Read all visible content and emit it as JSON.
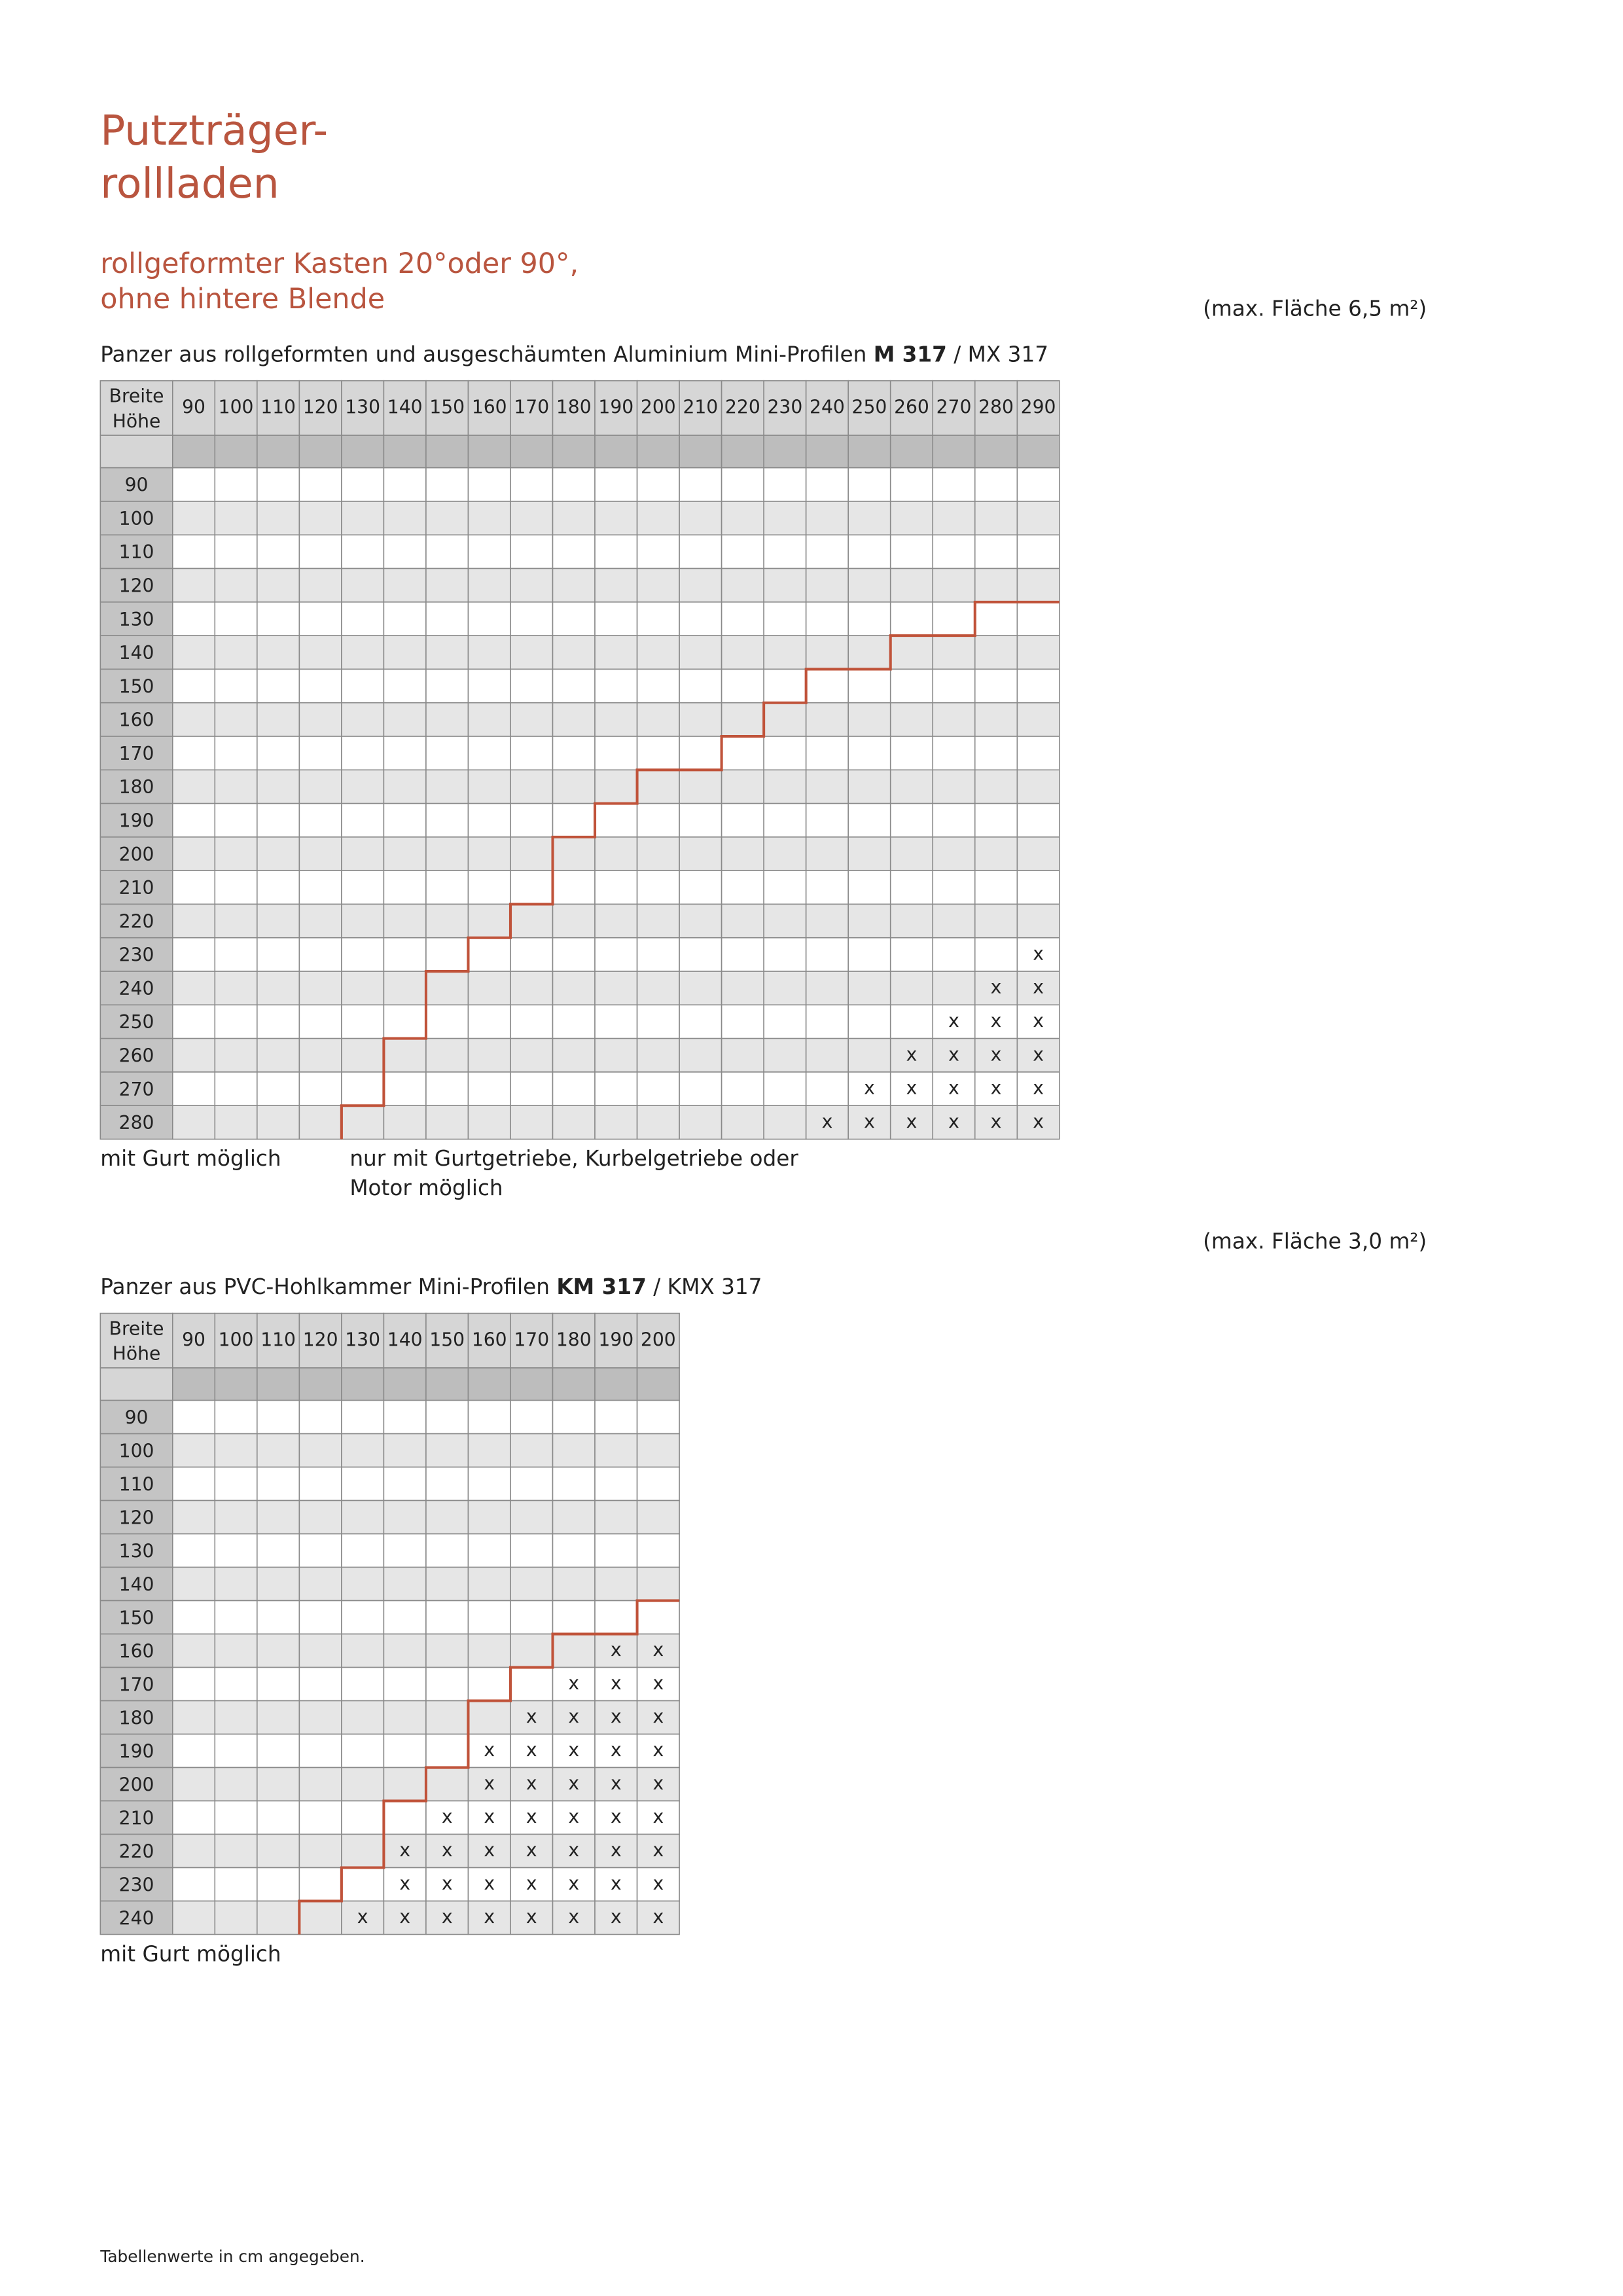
{
  "header": {
    "title_line1": "Putzträger-",
    "title_line2": "rollladen",
    "subtitle_line1": "rollgeformter Kasten 20°oder 90°,",
    "subtitle_line2": "ohne hintere Blende"
  },
  "sections": [
    {
      "area_note": "(max. Fläche 6,5 m²)",
      "caption_prefix": "Panzer aus rollgeformten und ausgeschäumten Aluminium Mini-Profilen ",
      "caption_bold": "M 317",
      "caption_suffix": " / MX 317",
      "table": {
        "corner_top": "Breite",
        "corner_bottom": "Höhe",
        "columns": [
          "90",
          "100",
          "110",
          "120",
          "130",
          "140",
          "150",
          "160",
          "170",
          "180",
          "190",
          "200",
          "210",
          "220",
          "230",
          "240",
          "250",
          "260",
          "270",
          "280",
          "290"
        ],
        "rows": [
          {
            "label": "90",
            "cells": [
              null,
              null,
              null,
              null,
              null,
              null,
              null,
              null,
              null,
              null,
              null,
              null,
              null,
              null,
              null,
              null,
              null,
              null,
              null,
              null,
              null
            ]
          },
          {
            "label": "100",
            "cells": [
              null,
              null,
              null,
              null,
              null,
              null,
              null,
              null,
              null,
              null,
              null,
              null,
              null,
              null,
              null,
              null,
              null,
              null,
              null,
              null,
              null
            ]
          },
          {
            "label": "110",
            "cells": [
              null,
              null,
              null,
              null,
              null,
              null,
              null,
              null,
              null,
              null,
              null,
              null,
              null,
              null,
              null,
              null,
              null,
              null,
              null,
              null,
              null
            ]
          },
          {
            "label": "120",
            "cells": [
              null,
              null,
              null,
              null,
              null,
              null,
              null,
              null,
              null,
              null,
              null,
              null,
              null,
              null,
              null,
              null,
              null,
              null,
              null,
              null,
              null
            ]
          },
          {
            "label": "130",
            "cells": [
              null,
              null,
              null,
              null,
              null,
              null,
              null,
              null,
              null,
              null,
              null,
              null,
              null,
              null,
              null,
              null,
              null,
              null,
              null,
              null,
              null
            ]
          },
          {
            "label": "140",
            "cells": [
              null,
              null,
              null,
              null,
              null,
              null,
              null,
              null,
              null,
              null,
              null,
              null,
              null,
              null,
              null,
              null,
              null,
              null,
              null,
              null,
              null
            ]
          },
          {
            "label": "150",
            "cells": [
              null,
              null,
              null,
              null,
              null,
              null,
              null,
              null,
              null,
              null,
              null,
              null,
              null,
              null,
              null,
              null,
              null,
              null,
              null,
              null,
              null
            ]
          },
          {
            "label": "160",
            "cells": [
              null,
              null,
              null,
              null,
              null,
              null,
              null,
              null,
              null,
              null,
              null,
              null,
              null,
              null,
              null,
              null,
              null,
              null,
              null,
              null,
              null
            ]
          },
          {
            "label": "170",
            "cells": [
              null,
              null,
              null,
              null,
              null,
              null,
              null,
              null,
              null,
              null,
              null,
              null,
              null,
              null,
              null,
              null,
              null,
              null,
              null,
              null,
              null
            ]
          },
          {
            "label": "180",
            "cells": [
              null,
              null,
              null,
              null,
              null,
              null,
              null,
              null,
              null,
              null,
              null,
              null,
              null,
              null,
              null,
              null,
              null,
              null,
              null,
              null,
              null
            ]
          },
          {
            "label": "190",
            "cells": [
              null,
              null,
              null,
              null,
              null,
              null,
              null,
              null,
              null,
              null,
              null,
              null,
              null,
              null,
              null,
              null,
              null,
              null,
              null,
              null,
              null
            ]
          },
          {
            "label": "200",
            "cells": [
              null,
              null,
              null,
              null,
              null,
              null,
              null,
              null,
              null,
              null,
              null,
              null,
              null,
              null,
              null,
              null,
              null,
              null,
              null,
              null,
              null
            ]
          },
          {
            "label": "210",
            "cells": [
              null,
              null,
              null,
              null,
              null,
              null,
              null,
              null,
              null,
              null,
              null,
              null,
              null,
              null,
              null,
              null,
              null,
              null,
              null,
              null,
              null
            ]
          },
          {
            "label": "220",
            "cells": [
              null,
              null,
              null,
              null,
              null,
              null,
              null,
              null,
              null,
              null,
              null,
              null,
              null,
              null,
              null,
              null,
              null,
              null,
              null,
              null,
              null
            ]
          },
          {
            "label": "230",
            "cells": [
              null,
              null,
              null,
              null,
              null,
              null,
              null,
              null,
              null,
              null,
              null,
              null,
              null,
              null,
              null,
              null,
              null,
              null,
              null,
              null,
              "x"
            ]
          },
          {
            "label": "240",
            "cells": [
              null,
              null,
              null,
              null,
              null,
              null,
              null,
              null,
              null,
              null,
              null,
              null,
              null,
              null,
              null,
              null,
              null,
              null,
              null,
              "x",
              "x"
            ]
          },
          {
            "label": "250",
            "cells": [
              null,
              null,
              null,
              null,
              null,
              null,
              null,
              null,
              null,
              null,
              null,
              null,
              null,
              null,
              null,
              null,
              null,
              null,
              "x",
              "x",
              "x"
            ]
          },
          {
            "label": "260",
            "cells": [
              null,
              null,
              null,
              null,
              null,
              null,
              null,
              null,
              null,
              null,
              null,
              null,
              null,
              null,
              null,
              null,
              null,
              "x",
              "x",
              "x",
              "x"
            ]
          },
          {
            "label": "270",
            "cells": [
              null,
              null,
              null,
              null,
              null,
              null,
              null,
              null,
              null,
              null,
              null,
              null,
              null,
              null,
              null,
              null,
              "x",
              "x",
              "x",
              "x",
              "x"
            ]
          },
          {
            "label": "280",
            "cells": [
              null,
              null,
              null,
              null,
              null,
              null,
              null,
              null,
              null,
              null,
              null,
              null,
              null,
              null,
              null,
              "x",
              "x",
              "x",
              "x",
              "x",
              "x"
            ]
          }
        ]
      },
      "notes": [
        "mit Gurt möglich",
        "nur mit Gurtgetriebe, Kurbelgetriebe oder Motor möglich"
      ]
    },
    {
      "area_note": "(max. Fläche 3,0 m²)",
      "caption_prefix": "Panzer aus PVC-Hohlkammer Mini-Profilen ",
      "caption_bold": "KM 317",
      "caption_suffix": " / KMX 317",
      "table": {
        "corner_top": "Breite",
        "corner_bottom": "Höhe",
        "columns": [
          "90",
          "100",
          "110",
          "120",
          "130",
          "140",
          "150",
          "160",
          "170",
          "180",
          "190",
          "200"
        ],
        "rows": [
          {
            "label": "90",
            "cells": [
              null,
              null,
              null,
              null,
              null,
              null,
              null,
              null,
              null,
              null,
              null,
              null
            ]
          },
          {
            "label": "100",
            "cells": [
              null,
              null,
              null,
              null,
              null,
              null,
              null,
              null,
              null,
              null,
              null,
              null
            ]
          },
          {
            "label": "110",
            "cells": [
              null,
              null,
              null,
              null,
              null,
              null,
              null,
              null,
              null,
              null,
              null,
              null
            ]
          },
          {
            "label": "120",
            "cells": [
              null,
              null,
              null,
              null,
              null,
              null,
              null,
              null,
              null,
              null,
              null,
              null
            ]
          },
          {
            "label": "130",
            "cells": [
              null,
              null,
              null,
              null,
              null,
              null,
              null,
              null,
              null,
              null,
              null,
              null
            ]
          },
          {
            "label": "140",
            "cells": [
              null,
              null,
              null,
              null,
              null,
              null,
              null,
              null,
              null,
              null,
              null,
              null
            ]
          },
          {
            "label": "150",
            "cells": [
              null,
              null,
              null,
              null,
              null,
              null,
              null,
              null,
              null,
              null,
              null,
              null
            ]
          },
          {
            "label": "160",
            "cells": [
              null,
              null,
              null,
              null,
              null,
              null,
              null,
              null,
              null,
              null,
              "x",
              "x"
            ]
          },
          {
            "label": "170",
            "cells": [
              null,
              null,
              null,
              null,
              null,
              null,
              null,
              null,
              null,
              "x",
              "x",
              "x"
            ]
          },
          {
            "label": "180",
            "cells": [
              null,
              null,
              null,
              null,
              null,
              null,
              null,
              null,
              "x",
              "x",
              "x",
              "x"
            ]
          },
          {
            "label": "190",
            "cells": [
              null,
              null,
              null,
              null,
              null,
              null,
              null,
              "x",
              "x",
              "x",
              "x",
              "x"
            ]
          },
          {
            "label": "200",
            "cells": [
              null,
              null,
              null,
              null,
              null,
              null,
              null,
              "x",
              "x",
              "x",
              "x",
              "x"
            ]
          },
          {
            "label": "210",
            "cells": [
              null,
              null,
              null,
              null,
              null,
              null,
              "x",
              "x",
              "x",
              "x",
              "x",
              "x"
            ]
          },
          {
            "label": "220",
            "cells": [
              null,
              null,
              null,
              null,
              null,
              "x",
              "x",
              "x",
              "x",
              "x",
              "x",
              "x"
            ]
          },
          {
            "label": "230",
            "cells": [
              null,
              null,
              null,
              null,
              null,
              "x",
              "x",
              "x",
              "x",
              "x",
              "x",
              "x"
            ]
          },
          {
            "label": "240",
            "cells": [
              null,
              null,
              null,
              null,
              "x",
              "x",
              "x",
              "x",
              "x",
              "x",
              "x",
              "x"
            ]
          }
        ]
      },
      "notes": [
        "mit Gurt möglich"
      ]
    }
  ],
  "footer": "Tabellenwerte in cm angegeben."
}
